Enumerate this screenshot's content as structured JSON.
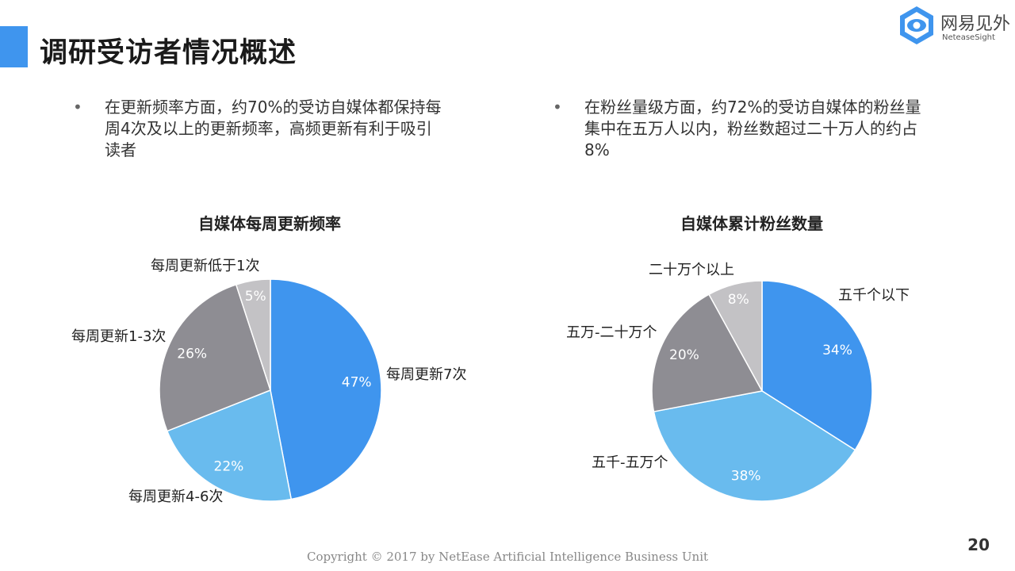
{
  "slide": {
    "title": "调研受访者情况概述",
    "page_number": "20",
    "footer": "Copyright © 2017 by NetEase Artificial Intelligence Business Unit"
  },
  "logo": {
    "name_cn": "网易见外",
    "name_en": "NeteaseSight"
  },
  "bullets": [
    {
      "marker": "•",
      "text": "在更新频率方面，约70%的受访自媒体都保持每周4次及以上的更新频率，高频更新有利于吸引读者"
    },
    {
      "marker": "•",
      "text": "在粉丝量级方面，约72%的受访自媒体的粉丝量集中在五万人以内，粉丝数超过二十万人的约占8%"
    }
  ],
  "colors": {
    "accent": "#3f95ee",
    "slice_blue": "#3f95ee",
    "slice_light_blue": "#69bbee",
    "slice_gray": "#8e8d93",
    "slice_light_gray": "#c3c2c5",
    "label_text": "#222222",
    "percent_text": "#ffffff"
  },
  "chart_data": [
    {
      "type": "pie",
      "title": "自媒体每周更新频率",
      "slices": [
        {
          "label": "每周更新7次",
          "value": 47,
          "value_label": "47%"
        },
        {
          "label": "每周更新4-6次",
          "value": 22,
          "value_label": "22%"
        },
        {
          "label": "每周更新1-3次",
          "value": 26,
          "value_label": "26%"
        },
        {
          "label": "每周更新低于1次",
          "value": 5,
          "value_label": "5%"
        }
      ]
    },
    {
      "type": "pie",
      "title": "自媒体累计粉丝数量",
      "slices": [
        {
          "label": "五千个以下",
          "value": 34,
          "value_label": "34%"
        },
        {
          "label": "五千-五万个",
          "value": 38,
          "value_label": "38%"
        },
        {
          "label": "五万-二十万个",
          "value": 20,
          "value_label": "20%"
        },
        {
          "label": "二十万个以上",
          "value": 8,
          "value_label": "8%"
        }
      ]
    }
  ]
}
